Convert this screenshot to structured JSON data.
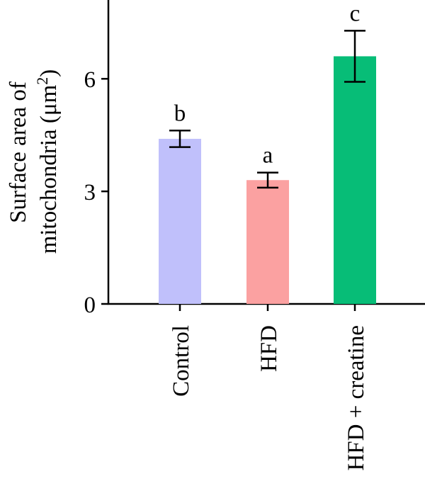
{
  "chart_data": {
    "type": "bar",
    "categories": [
      "Control",
      "HFD",
      "HFD + creatine"
    ],
    "values": [
      4.4,
      3.3,
      6.6
    ],
    "errors": [
      0.22,
      0.2,
      0.68
    ],
    "significance_letters": [
      "b",
      "a",
      "c"
    ],
    "colors": [
      "#c0c0fb",
      "#fba1a1",
      "#07bd77"
    ],
    "ylabel_line1": "Surface area of",
    "ylabel_line2_prefix": "mitochondria (μm",
    "ylabel_superscript": "2",
    "ylabel_line2_suffix": ")",
    "yticks": [
      0,
      3,
      6
    ],
    "ytick_labels": [
      "0",
      "3",
      "6"
    ],
    "ylim": [
      0,
      8.1
    ]
  }
}
